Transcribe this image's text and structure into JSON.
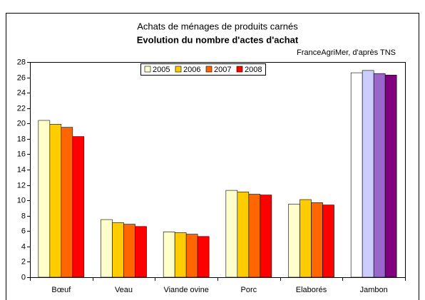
{
  "chart_data": {
    "type": "bar",
    "title": "Achats de ménages de produits carnés",
    "subtitle": "Evolution du nombre d'actes d'achat",
    "source": "FranceAgriMer, d'après TNS",
    "categories": [
      "Bœuf",
      "Veau",
      "Viande ovine",
      "Porc",
      "Elaborés",
      "Jambon"
    ],
    "series": [
      {
        "name": "2005",
        "color": "#ffffcc",
        "colors": [
          "#ffffcc",
          "#ffffcc",
          "#ffffcc",
          "#ffffcc",
          "#ffffcc",
          "#ffffff"
        ],
        "values": [
          20.4,
          7.5,
          5.9,
          11.3,
          9.5,
          26.6
        ]
      },
      {
        "name": "2006",
        "color": "#ffcc00",
        "colors": [
          "#ffcc00",
          "#ffcc00",
          "#ffcc00",
          "#ffcc00",
          "#ffcc00",
          "#ccccff"
        ],
        "values": [
          19.9,
          7.1,
          5.8,
          11.1,
          10.1,
          26.9
        ]
      },
      {
        "name": "2007",
        "color": "#ff6600",
        "colors": [
          "#ff6600",
          "#ff6600",
          "#ff6600",
          "#ff6600",
          "#ff6600",
          "#9966cc"
        ],
        "values": [
          19.5,
          6.9,
          5.6,
          10.8,
          9.7,
          26.5
        ]
      },
      {
        "name": "2008",
        "color": "#ff0000",
        "colors": [
          "#ff0000",
          "#ff0000",
          "#ff0000",
          "#ff0000",
          "#ff0000",
          "#800080"
        ],
        "values": [
          18.3,
          6.6,
          5.3,
          10.7,
          9.4,
          26.3
        ]
      }
    ],
    "ylim": [
      0,
      28
    ],
    "yticks": [
      0,
      2,
      4,
      6,
      8,
      10,
      12,
      14,
      16,
      18,
      20,
      22,
      24,
      26,
      28
    ],
    "grid": false,
    "legend": "top"
  }
}
